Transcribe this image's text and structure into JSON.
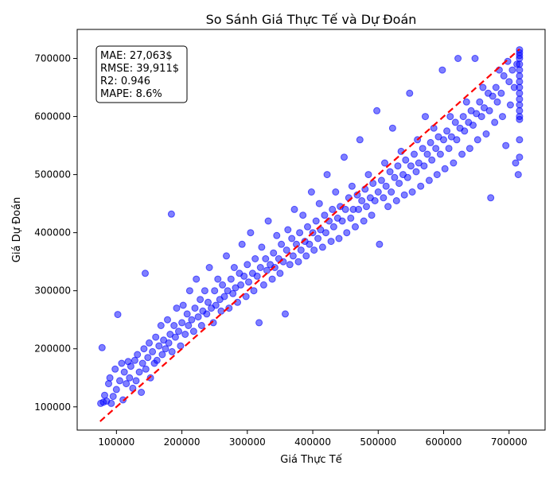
{
  "chart_data": {
    "type": "scatter",
    "title": "So Sánh Giá Thực Tế và Dự Đoán",
    "xlabel": "Giá Thực Tế",
    "ylabel": "Giá Dự Đoán",
    "xlim": [
      40000,
      755000
    ],
    "ylim": [
      60000,
      750000
    ],
    "x_ticks": [
      100000,
      200000,
      300000,
      400000,
      500000,
      600000,
      700000
    ],
    "x_tick_labels": [
      "100000",
      "200000",
      "300000",
      "400000",
      "500000",
      "600000",
      "700000"
    ],
    "y_ticks": [
      100000,
      200000,
      300000,
      400000,
      500000,
      600000,
      700000
    ],
    "y_tick_labels": [
      "100000",
      "200000",
      "300000",
      "400000",
      "500000",
      "600000",
      "700000"
    ],
    "grid": false,
    "stats_box": {
      "position": "top-left",
      "lines": [
        "MAE: 27,063$",
        "RMSE: 39,911$",
        "R2: 0.946",
        "MAPE: 8.6%"
      ]
    },
    "reference_line": {
      "x": [
        75000,
        716000
      ],
      "y": [
        75000,
        716000
      ],
      "color": "#ff0000",
      "style": "dashed"
    },
    "point_color": "#0000ff",
    "point_opacity": 0.5,
    "points": [
      [
        76000,
        106000
      ],
      [
        78000,
        202000
      ],
      [
        80000,
        108000
      ],
      [
        82000,
        120000
      ],
      [
        85000,
        110000
      ],
      [
        88000,
        140000
      ],
      [
        90000,
        150000
      ],
      [
        92000,
        106000
      ],
      [
        95000,
        118000
      ],
      [
        98000,
        165000
      ],
      [
        100000,
        130000
      ],
      [
        102000,
        259000
      ],
      [
        105000,
        145000
      ],
      [
        108000,
        175000
      ],
      [
        110000,
        112000
      ],
      [
        112000,
        160000
      ],
      [
        115000,
        140000
      ],
      [
        118000,
        178000
      ],
      [
        120000,
        150000
      ],
      [
        122000,
        170000
      ],
      [
        125000,
        132000
      ],
      [
        128000,
        180000
      ],
      [
        130000,
        145000
      ],
      [
        132000,
        190000
      ],
      [
        135000,
        160000
      ],
      [
        138000,
        125000
      ],
      [
        140000,
        175000
      ],
      [
        142000,
        200000
      ],
      [
        144000,
        330000
      ],
      [
        145000,
        165000
      ],
      [
        148000,
        185000
      ],
      [
        150000,
        210000
      ],
      [
        152000,
        150000
      ],
      [
        155000,
        195000
      ],
      [
        158000,
        175000
      ],
      [
        160000,
        220000
      ],
      [
        162000,
        180000
      ],
      [
        165000,
        205000
      ],
      [
        168000,
        240000
      ],
      [
        170000,
        190000
      ],
      [
        172000,
        215000
      ],
      [
        175000,
        200000
      ],
      [
        178000,
        250000
      ],
      [
        180000,
        210000
      ],
      [
        182000,
        225000
      ],
      [
        184000,
        432000
      ],
      [
        185000,
        195000
      ],
      [
        188000,
        240000
      ],
      [
        190000,
        220000
      ],
      [
        192000,
        270000
      ],
      [
        195000,
        230000
      ],
      [
        198000,
        205000
      ],
      [
        200000,
        245000
      ],
      [
        202000,
        275000
      ],
      [
        205000,
        225000
      ],
      [
        208000,
        260000
      ],
      [
        210000,
        240000
      ],
      [
        212000,
        300000
      ],
      [
        215000,
        250000
      ],
      [
        218000,
        230000
      ],
      [
        220000,
        270000
      ],
      [
        222000,
        320000
      ],
      [
        225000,
        255000
      ],
      [
        228000,
        285000
      ],
      [
        230000,
        240000
      ],
      [
        232000,
        265000
      ],
      [
        235000,
        300000
      ],
      [
        238000,
        260000
      ],
      [
        240000,
        280000
      ],
      [
        242000,
        340000
      ],
      [
        245000,
        270000
      ],
      [
        248000,
        245000
      ],
      [
        250000,
        300000
      ],
      [
        252000,
        275000
      ],
      [
        255000,
        320000
      ],
      [
        258000,
        285000
      ],
      [
        260000,
        265000
      ],
      [
        262000,
        310000
      ],
      [
        265000,
        290000
      ],
      [
        268000,
        360000
      ],
      [
        270000,
        300000
      ],
      [
        272000,
        270000
      ],
      [
        275000,
        320000
      ],
      [
        278000,
        295000
      ],
      [
        280000,
        340000
      ],
      [
        282000,
        305000
      ],
      [
        285000,
        280000
      ],
      [
        288000,
        330000
      ],
      [
        290000,
        310000
      ],
      [
        292000,
        380000
      ],
      [
        295000,
        325000
      ],
      [
        298000,
        290000
      ],
      [
        300000,
        345000
      ],
      [
        302000,
        315000
      ],
      [
        305000,
        400000
      ],
      [
        308000,
        330000
      ],
      [
        310000,
        300000
      ],
      [
        312000,
        355000
      ],
      [
        315000,
        325000
      ],
      [
        318000,
        245000
      ],
      [
        320000,
        340000
      ],
      [
        322000,
        375000
      ],
      [
        325000,
        310000
      ],
      [
        328000,
        355000
      ],
      [
        330000,
        335000
      ],
      [
        332000,
        420000
      ],
      [
        335000,
        345000
      ],
      [
        338000,
        320000
      ],
      [
        340000,
        365000
      ],
      [
        342000,
        340000
      ],
      [
        345000,
        395000
      ],
      [
        348000,
        355000
      ],
      [
        350000,
        330000
      ],
      [
        352000,
        380000
      ],
      [
        355000,
        350000
      ],
      [
        358000,
        260000
      ],
      [
        360000,
        370000
      ],
      [
        362000,
        405000
      ],
      [
        365000,
        345000
      ],
      [
        368000,
        390000
      ],
      [
        370000,
        360000
      ],
      [
        372000,
        440000
      ],
      [
        375000,
        380000
      ],
      [
        378000,
        350000
      ],
      [
        380000,
        400000
      ],
      [
        382000,
        370000
      ],
      [
        385000,
        430000
      ],
      [
        388000,
        385000
      ],
      [
        390000,
        360000
      ],
      [
        392000,
        410000
      ],
      [
        395000,
        380000
      ],
      [
        398000,
        470000
      ],
      [
        400000,
        400000
      ],
      [
        402000,
        370000
      ],
      [
        405000,
        420000
      ],
      [
        408000,
        390000
      ],
      [
        410000,
        450000
      ],
      [
        412000,
        405000
      ],
      [
        415000,
        375000
      ],
      [
        418000,
        430000
      ],
      [
        420000,
        400000
      ],
      [
        422000,
        500000
      ],
      [
        425000,
        420000
      ],
      [
        428000,
        385000
      ],
      [
        430000,
        440000
      ],
      [
        432000,
        410000
      ],
      [
        435000,
        470000
      ],
      [
        438000,
        425000
      ],
      [
        440000,
        390000
      ],
      [
        442000,
        445000
      ],
      [
        445000,
        420000
      ],
      [
        448000,
        530000
      ],
      [
        450000,
        440000
      ],
      [
        452000,
        400000
      ],
      [
        455000,
        460000
      ],
      [
        458000,
        425000
      ],
      [
        460000,
        480000
      ],
      [
        462000,
        440000
      ],
      [
        465000,
        410000
      ],
      [
        468000,
        465000
      ],
      [
        470000,
        440000
      ],
      [
        472000,
        560000
      ],
      [
        475000,
        455000
      ],
      [
        478000,
        420000
      ],
      [
        480000,
        475000
      ],
      [
        482000,
        445000
      ],
      [
        485000,
        500000
      ],
      [
        488000,
        460000
      ],
      [
        490000,
        430000
      ],
      [
        492000,
        485000
      ],
      [
        495000,
        455000
      ],
      [
        498000,
        610000
      ],
      [
        500000,
        470000
      ],
      [
        502000,
        380000
      ],
      [
        505000,
        490000
      ],
      [
        508000,
        460000
      ],
      [
        510000,
        520000
      ],
      [
        512000,
        480000
      ],
      [
        515000,
        445000
      ],
      [
        518000,
        505000
      ],
      [
        520000,
        470000
      ],
      [
        522000,
        580000
      ],
      [
        525000,
        495000
      ],
      [
        528000,
        455000
      ],
      [
        530000,
        515000
      ],
      [
        532000,
        485000
      ],
      [
        535000,
        540000
      ],
      [
        538000,
        500000
      ],
      [
        540000,
        465000
      ],
      [
        542000,
        525000
      ],
      [
        545000,
        495000
      ],
      [
        548000,
        640000
      ],
      [
        550000,
        515000
      ],
      [
        552000,
        470000
      ],
      [
        555000,
        535000
      ],
      [
        558000,
        505000
      ],
      [
        560000,
        560000
      ],
      [
        562000,
        520000
      ],
      [
        565000,
        480000
      ],
      [
        568000,
        545000
      ],
      [
        570000,
        515000
      ],
      [
        572000,
        600000
      ],
      [
        575000,
        535000
      ],
      [
        578000,
        490000
      ],
      [
        580000,
        555000
      ],
      [
        582000,
        525000
      ],
      [
        585000,
        580000
      ],
      [
        588000,
        545000
      ],
      [
        590000,
        500000
      ],
      [
        592000,
        565000
      ],
      [
        595000,
        535000
      ],
      [
        598000,
        680000
      ],
      [
        600000,
        560000
      ],
      [
        602000,
        510000
      ],
      [
        605000,
        575000
      ],
      [
        608000,
        545000
      ],
      [
        610000,
        600000
      ],
      [
        612000,
        565000
      ],
      [
        615000,
        520000
      ],
      [
        618000,
        590000
      ],
      [
        620000,
        560000
      ],
      [
        622000,
        700000
      ],
      [
        625000,
        580000
      ],
      [
        628000,
        535000
      ],
      [
        630000,
        600000
      ],
      [
        632000,
        575000
      ],
      [
        635000,
        625000
      ],
      [
        638000,
        590000
      ],
      [
        640000,
        545000
      ],
      [
        642000,
        610000
      ],
      [
        645000,
        585000
      ],
      [
        648000,
        700000
      ],
      [
        650000,
        605000
      ],
      [
        652000,
        560000
      ],
      [
        655000,
        625000
      ],
      [
        658000,
        600000
      ],
      [
        660000,
        650000
      ],
      [
        662000,
        615000
      ],
      [
        665000,
        570000
      ],
      [
        668000,
        640000
      ],
      [
        670000,
        610000
      ],
      [
        672000,
        460000
      ],
      [
        675000,
        635000
      ],
      [
        678000,
        590000
      ],
      [
        680000,
        650000
      ],
      [
        682000,
        625000
      ],
      [
        685000,
        680000
      ],
      [
        688000,
        640000
      ],
      [
        690000,
        600000
      ],
      [
        692000,
        670000
      ],
      [
        695000,
        550000
      ],
      [
        698000,
        695000
      ],
      [
        700000,
        660000
      ],
      [
        702000,
        620000
      ],
      [
        705000,
        680000
      ],
      [
        708000,
        650000
      ],
      [
        710000,
        520000
      ],
      [
        712000,
        690000
      ],
      [
        714000,
        500000
      ],
      [
        716000,
        600000
      ],
      [
        716000,
        620000
      ],
      [
        716000,
        640000
      ],
      [
        716000,
        660000
      ],
      [
        716000,
        680000
      ],
      [
        716000,
        700000
      ],
      [
        716000,
        710000
      ],
      [
        716000,
        715000
      ],
      [
        716000,
        650000
      ],
      [
        716000,
        670000
      ],
      [
        716000,
        690000
      ],
      [
        716000,
        705000
      ],
      [
        716000,
        630000
      ],
      [
        716000,
        610000
      ],
      [
        716000,
        595000
      ],
      [
        716000,
        560000
      ],
      [
        716000,
        530000
      ]
    ]
  }
}
